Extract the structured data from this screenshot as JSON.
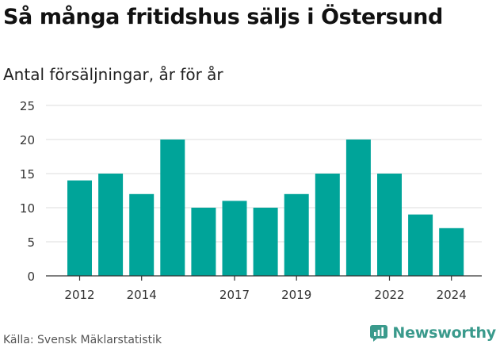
{
  "header": {
    "title": "Så många fritidshus säljs i Östersund",
    "subtitle": "Antal försäljningar, år för år"
  },
  "footer": {
    "source": "Källa: Svensk Mäklarstatistik",
    "brand": "Newsworthy"
  },
  "colors": {
    "bar": "#00a499",
    "grid": "#dcdcdc",
    "axis": "#333333",
    "brand": "#3a9a8c"
  },
  "chart_data": {
    "type": "bar",
    "categories": [
      "2012",
      "2013",
      "2014",
      "2015",
      "2016",
      "2017",
      "2018",
      "2019",
      "2020",
      "2021",
      "2022",
      "2023",
      "2024"
    ],
    "values": [
      14,
      15,
      12,
      20,
      10,
      11,
      10,
      12,
      15,
      20,
      15,
      9,
      7
    ],
    "x_tick_labels": [
      "2012",
      "2014",
      "2017",
      "2019",
      "2022",
      "2024"
    ],
    "y_ticks": [
      0,
      5,
      10,
      15,
      20,
      25
    ],
    "ylim": [
      0,
      25
    ],
    "grid": true,
    "legend": "none"
  }
}
